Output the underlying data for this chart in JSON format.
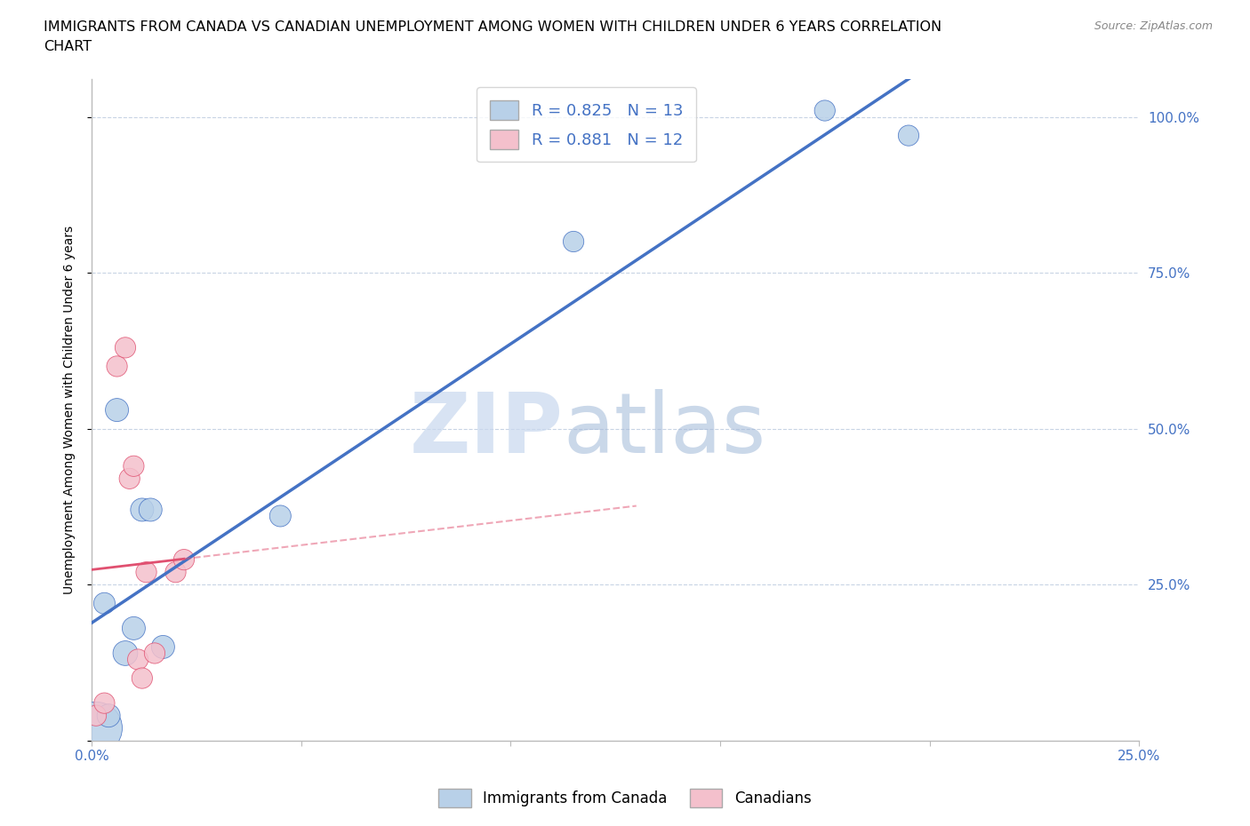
{
  "title_line1": "IMMIGRANTS FROM CANADA VS CANADIAN UNEMPLOYMENT AMONG WOMEN WITH CHILDREN UNDER 6 YEARS CORRELATION",
  "title_line2": "CHART",
  "source": "Source: ZipAtlas.com",
  "ylabel": "Unemployment Among Women with Children Under 6 years",
  "xlim": [
    0.0,
    0.25
  ],
  "ylim": [
    0.0,
    1.06
  ],
  "xticks": [
    0.0,
    0.05,
    0.1,
    0.15,
    0.2,
    0.25
  ],
  "xticklabels": [
    "0.0%",
    "",
    "",
    "",
    "",
    "25.0%"
  ],
  "yticks": [
    0.0,
    0.25,
    0.5,
    0.75,
    1.0
  ],
  "right_yticklabels": [
    "",
    "25.0%",
    "50.0%",
    "75.0%",
    "100.0%"
  ],
  "blue_R": 0.825,
  "blue_N": 13,
  "pink_R": 0.881,
  "pink_N": 12,
  "blue_color": "#b8d0e8",
  "pink_color": "#f4c0cc",
  "trend_blue": "#4472c4",
  "trend_pink": "#e05070",
  "watermark_zip": "ZIP",
  "watermark_atlas": "atlas",
  "blue_scatter_x": [
    0.001,
    0.003,
    0.004,
    0.006,
    0.008,
    0.01,
    0.012,
    0.014,
    0.017,
    0.045,
    0.115,
    0.175,
    0.195
  ],
  "blue_scatter_y": [
    0.02,
    0.22,
    0.04,
    0.53,
    0.14,
    0.18,
    0.37,
    0.37,
    0.15,
    0.36,
    0.8,
    1.01,
    0.97
  ],
  "blue_scatter_size": [
    1800,
    300,
    350,
    350,
    400,
    350,
    350,
    350,
    350,
    300,
    280,
    280,
    280
  ],
  "pink_scatter_x": [
    0.001,
    0.003,
    0.006,
    0.008,
    0.009,
    0.01,
    0.011,
    0.012,
    0.013,
    0.015,
    0.02,
    0.022
  ],
  "pink_scatter_y": [
    0.04,
    0.06,
    0.6,
    0.63,
    0.42,
    0.44,
    0.13,
    0.1,
    0.27,
    0.14,
    0.27,
    0.29
  ],
  "pink_scatter_size": [
    280,
    280,
    280,
    280,
    280,
    280,
    280,
    280,
    280,
    280,
    280,
    280
  ],
  "legend_label_blue": "Immigrants from Canada",
  "legend_label_pink": "Canadians",
  "background_color": "#ffffff",
  "grid_color": "#c8d4e4",
  "title_fontsize": 11.5,
  "axis_label_fontsize": 10,
  "tick_fontsize": 11
}
